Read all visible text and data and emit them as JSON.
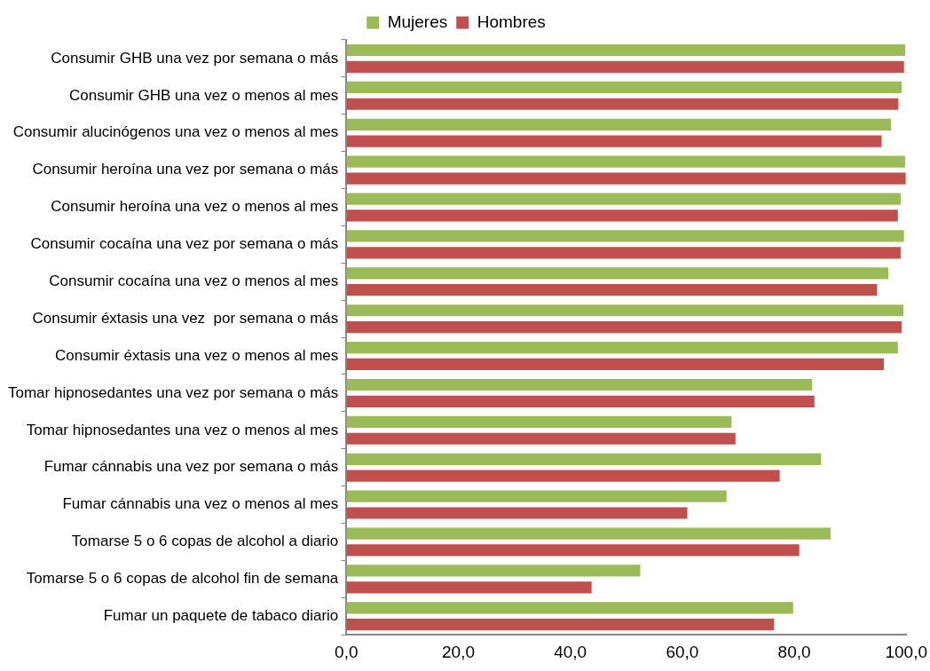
{
  "chart_data": {
    "type": "bar",
    "orientation": "horizontal",
    "legend": "top",
    "grid": false,
    "categories": [
      "Consumir GHB una vez por semana o más",
      "Consumir GHB una vez o menos al mes",
      "Consumir alucinógenos una vez o menos al mes",
      "Consumir heroína una vez por semana o más",
      "Consumir heroína una vez o menos al mes",
      "Consumir cocaína una vez por semana o más",
      "Consumir cocaína una vez o menos al mes",
      "Consumir éxtasis una vez  por semana o más",
      "Consumir éxtasis una vez o menos al mes",
      "Tomar hipnosedantes una vez por semana o más",
      "Tomar hipnosedantes una vez o menos al mes",
      "Fumar cánnabis una vez por semana o más",
      "Fumar cánnabis una vez o menos al mes",
      "Tomarse 5 o 6 copas de alcohol a diario",
      "Tomarse 5 o 6 copas de alcohol fin de semana",
      "Fumar un paquete de tabaco diario"
    ],
    "series": [
      {
        "name": "Mujeres",
        "color": "#9bbb59",
        "values": [
          99.8,
          99.2,
          97.3,
          99.8,
          99.0,
          99.6,
          96.8,
          99.5,
          98.5,
          83.2,
          68.8,
          84.8,
          67.9,
          86.5,
          52.5,
          79.8
        ]
      },
      {
        "name": "Hombres",
        "color": "#c0504d",
        "values": [
          99.6,
          98.6,
          95.6,
          99.9,
          98.5,
          99.0,
          94.8,
          99.2,
          96.0,
          83.6,
          69.5,
          77.4,
          60.9,
          80.9,
          43.8,
          76.4
        ]
      }
    ],
    "xlim": [
      0,
      100
    ],
    "xticks": [
      {
        "value": 0,
        "label": "0,0"
      },
      {
        "value": 20,
        "label": "20,0"
      },
      {
        "value": 40,
        "label": "40,0"
      },
      {
        "value": 60,
        "label": "60,0"
      },
      {
        "value": 80,
        "label": "80,0"
      },
      {
        "value": 100,
        "label": "100,0"
      }
    ]
  }
}
